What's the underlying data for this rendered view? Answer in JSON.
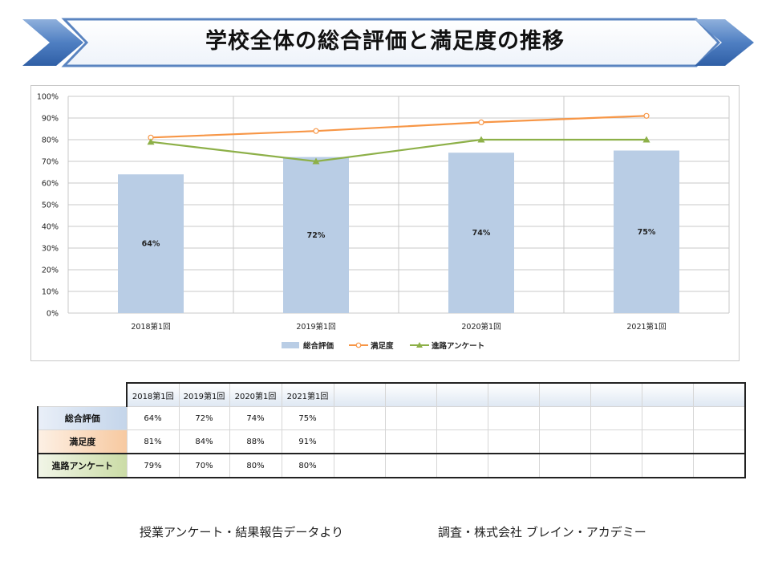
{
  "title": "学校全体の総合評価と満足度の推移",
  "chart_data": {
    "type": "bar",
    "categories": [
      "2018第1回",
      "2019第1回",
      "2020第1回",
      "2021第1回"
    ],
    "series": [
      {
        "name": "総合評価",
        "kind": "bar",
        "values": [
          64,
          72,
          74,
          75
        ],
        "color": "#b9cde5",
        "labels": [
          "64%",
          "72%",
          "74%",
          "75%"
        ]
      },
      {
        "name": "満足度",
        "kind": "line",
        "values": [
          81,
          84,
          88,
          91
        ],
        "color": "#f79646",
        "marker": "circle"
      },
      {
        "name": "進路アンケート",
        "kind": "line",
        "values": [
          79,
          70,
          80,
          80
        ],
        "color": "#8db048",
        "marker": "triangle"
      }
    ],
    "ylim": [
      0,
      100
    ],
    "yticks": [
      "0%",
      "10%",
      "20%",
      "30%",
      "40%",
      "50%",
      "60%",
      "70%",
      "80%",
      "90%",
      "100%"
    ],
    "grid": true,
    "legend_position": "bottom"
  },
  "table": {
    "headers": [
      "2018第1回",
      "2019第1回",
      "2020第1回",
      "2021第1回"
    ],
    "rows": [
      {
        "label": "総合評価",
        "values": [
          "64%",
          "72%",
          "74%",
          "75%"
        ]
      },
      {
        "label": "満足度",
        "values": [
          "81%",
          "84%",
          "88%",
          "91%"
        ]
      },
      {
        "label": "進路アンケート",
        "values": [
          "79%",
          "70%",
          "80%",
          "80%"
        ]
      }
    ],
    "empty_columns": 8
  },
  "footer": {
    "source": "授業アンケート・結果報告データより",
    "research": "調査・株式会社 ブレイン・アカデミー"
  }
}
